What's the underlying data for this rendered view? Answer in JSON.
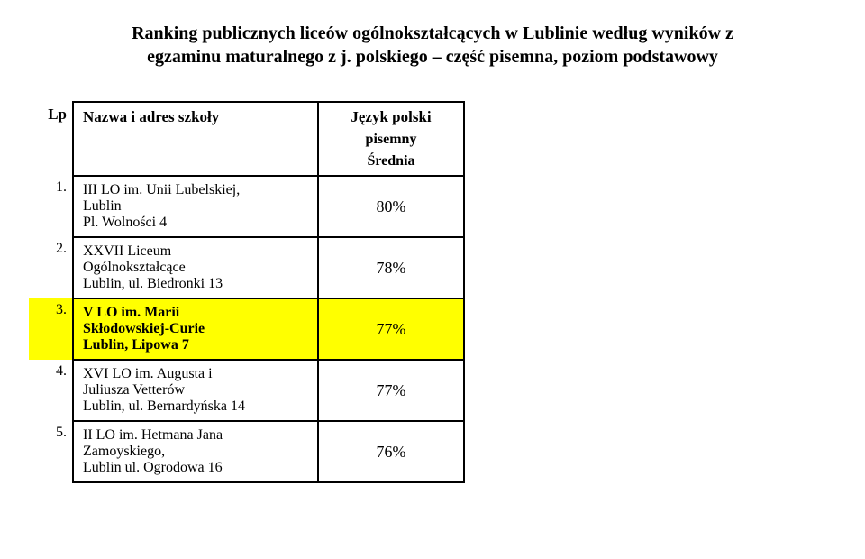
{
  "title_line1": "Ranking publicznych liceów ogólnokształcących w Lublinie według wyników z",
  "title_line2": "egzaminu maturalnego z j. polskiego – część pisemna, poziom podstawowy",
  "header": {
    "lp": "Lp",
    "name": "Nazwa i adres szkoły",
    "val_main": "Język polski",
    "val_sub1": "pisemny",
    "val_sub2": "Średnia"
  },
  "rows": [
    {
      "num": "1.",
      "name_l1": "III LO im. Unii Lubelskiej,",
      "name_l2": "Lublin",
      "name_l3": "Pl. Wolności 4",
      "value": "80%",
      "highlight": false,
      "bold": false
    },
    {
      "num": "2.",
      "name_l1": "XXVII Liceum",
      "name_l2": "Ogólnokształcące",
      "name_l3": "Lublin, ul. Biedronki 13",
      "value": "78%",
      "highlight": false,
      "bold": false
    },
    {
      "num": "3.",
      "name_l1": "V LO im. Marii",
      "name_l2": "Skłodowskiej-Curie",
      "name_l3": "Lublin, Lipowa 7",
      "value": "77%",
      "highlight": true,
      "bold": true
    },
    {
      "num": "4.",
      "name_l1": "XVI LO im. Augusta i",
      "name_l2": "Juliusza Vetterów",
      "name_l3": "Lublin, ul. Bernardyńska 14",
      "value": "77%",
      "highlight": false,
      "bold": false
    },
    {
      "num": "5.",
      "name_l1": "II LO im. Hetmana Jana",
      "name_l2": "Zamoyskiego,",
      "name_l3": "Lublin ul. Ogrodowa 16",
      "value": "76%",
      "highlight": false,
      "bold": false
    }
  ]
}
